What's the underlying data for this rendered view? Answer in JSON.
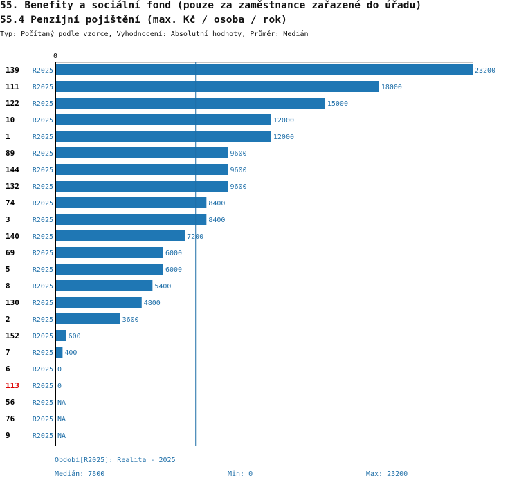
{
  "title": "55. Benefity a sociální fond (pouze za zaměstnance zařazené do úřadu)",
  "subtitle": "55.4 Penzijní pojištění (max. Kč / osoba / rok)",
  "type_line": "Typ: Počítaný podle vzorce, Vyhodnocení: Absolutní hodnoty, Průměr: Medián",
  "colors": {
    "bar": "#1f77b4",
    "value_text": "#1f6fa8",
    "highlight": "#dd0000",
    "axis": "#000000",
    "median_line": "#1f6fa8"
  },
  "chart_data": {
    "type": "bar",
    "orientation": "horizontal",
    "axis_tick_label": "0",
    "xlim": [
      0,
      23200
    ],
    "median": 7800,
    "rows": [
      {
        "id": "139",
        "period": "R2025",
        "value": 23200,
        "label": "23200",
        "highlight": false
      },
      {
        "id": "111",
        "period": "R2025",
        "value": 18000,
        "label": "18000",
        "highlight": false
      },
      {
        "id": "122",
        "period": "R2025",
        "value": 15000,
        "label": "15000",
        "highlight": false
      },
      {
        "id": "10",
        "period": "R2025",
        "value": 12000,
        "label": "12000",
        "highlight": false
      },
      {
        "id": "1",
        "period": "R2025",
        "value": 12000,
        "label": "12000",
        "highlight": false
      },
      {
        "id": "89",
        "period": "R2025",
        "value": 9600,
        "label": "9600",
        "highlight": false
      },
      {
        "id": "144",
        "period": "R2025",
        "value": 9600,
        "label": "9600",
        "highlight": false
      },
      {
        "id": "132",
        "period": "R2025",
        "value": 9600,
        "label": "9600",
        "highlight": false
      },
      {
        "id": "74",
        "period": "R2025",
        "value": 8400,
        "label": "8400",
        "highlight": false
      },
      {
        "id": "3",
        "period": "R2025",
        "value": 8400,
        "label": "8400",
        "highlight": false
      },
      {
        "id": "140",
        "period": "R2025",
        "value": 7200,
        "label": "7200",
        "highlight": false
      },
      {
        "id": "69",
        "period": "R2025",
        "value": 6000,
        "label": "6000",
        "highlight": false
      },
      {
        "id": "5",
        "period": "R2025",
        "value": 6000,
        "label": "6000",
        "highlight": false
      },
      {
        "id": "8",
        "period": "R2025",
        "value": 5400,
        "label": "5400",
        "highlight": false
      },
      {
        "id": "130",
        "period": "R2025",
        "value": 4800,
        "label": "4800",
        "highlight": false
      },
      {
        "id": "2",
        "period": "R2025",
        "value": 3600,
        "label": "3600",
        "highlight": false
      },
      {
        "id": "152",
        "period": "R2025",
        "value": 600,
        "label": "600",
        "highlight": false
      },
      {
        "id": "7",
        "period": "R2025",
        "value": 400,
        "label": "400",
        "highlight": false
      },
      {
        "id": "6",
        "period": "R2025",
        "value": 0,
        "label": "0",
        "highlight": false
      },
      {
        "id": "113",
        "period": "R2025",
        "value": 0,
        "label": "0",
        "highlight": true
      },
      {
        "id": "56",
        "period": "R2025",
        "value": null,
        "label": "NA",
        "highlight": false
      },
      {
        "id": "76",
        "period": "R2025",
        "value": null,
        "label": "NA",
        "highlight": false
      },
      {
        "id": "9",
        "period": "R2025",
        "value": null,
        "label": "NA",
        "highlight": false
      }
    ]
  },
  "footer": {
    "period": "Období[R2025]: Realita - 2025",
    "median": "Medián: 7800",
    "min": "Min: 0",
    "max": "Max: 23200"
  }
}
